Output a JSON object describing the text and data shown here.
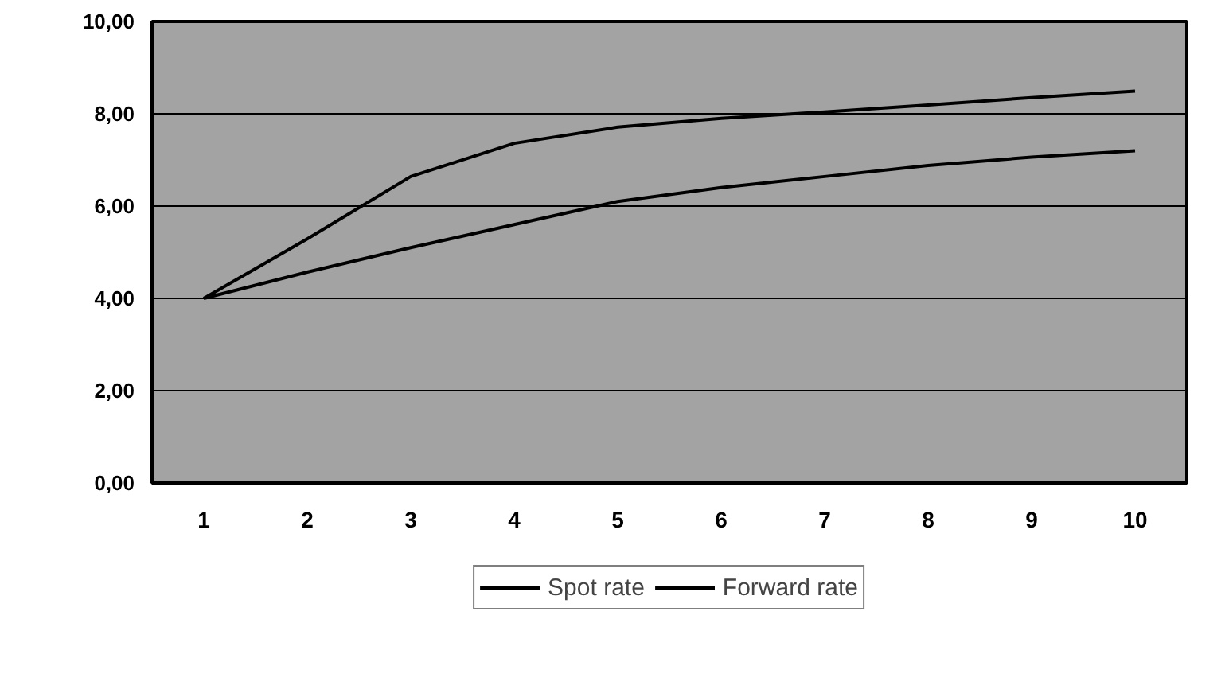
{
  "chart_data": {
    "type": "line",
    "categories": [
      "1",
      "2",
      "3",
      "4",
      "5",
      "6",
      "7",
      "8",
      "9",
      "10"
    ],
    "series": [
      {
        "name": "Spot rate",
        "color": "#000000",
        "values": [
          4.0,
          4.57,
          5.1,
          5.6,
          6.1,
          6.4,
          6.64,
          6.88,
          7.06,
          7.2
        ]
      },
      {
        "name": "Forward rate",
        "color": "#000000",
        "values": [
          4.0,
          5.29,
          6.64,
          7.36,
          7.71,
          7.9,
          8.04,
          8.19,
          8.35,
          8.49
        ]
      }
    ],
    "ylim": [
      0,
      10
    ],
    "yticks": [
      {
        "value": 0,
        "label": "0,00"
      },
      {
        "value": 2,
        "label": "2,00"
      },
      {
        "value": 4,
        "label": "4,00"
      },
      {
        "value": 6,
        "label": "6,00"
      },
      {
        "value": 8,
        "label": "8,00"
      },
      {
        "value": 10,
        "label": "10,00"
      }
    ],
    "grid": "y",
    "legend": "bottom",
    "marker": "none",
    "line_style": "solid"
  }
}
